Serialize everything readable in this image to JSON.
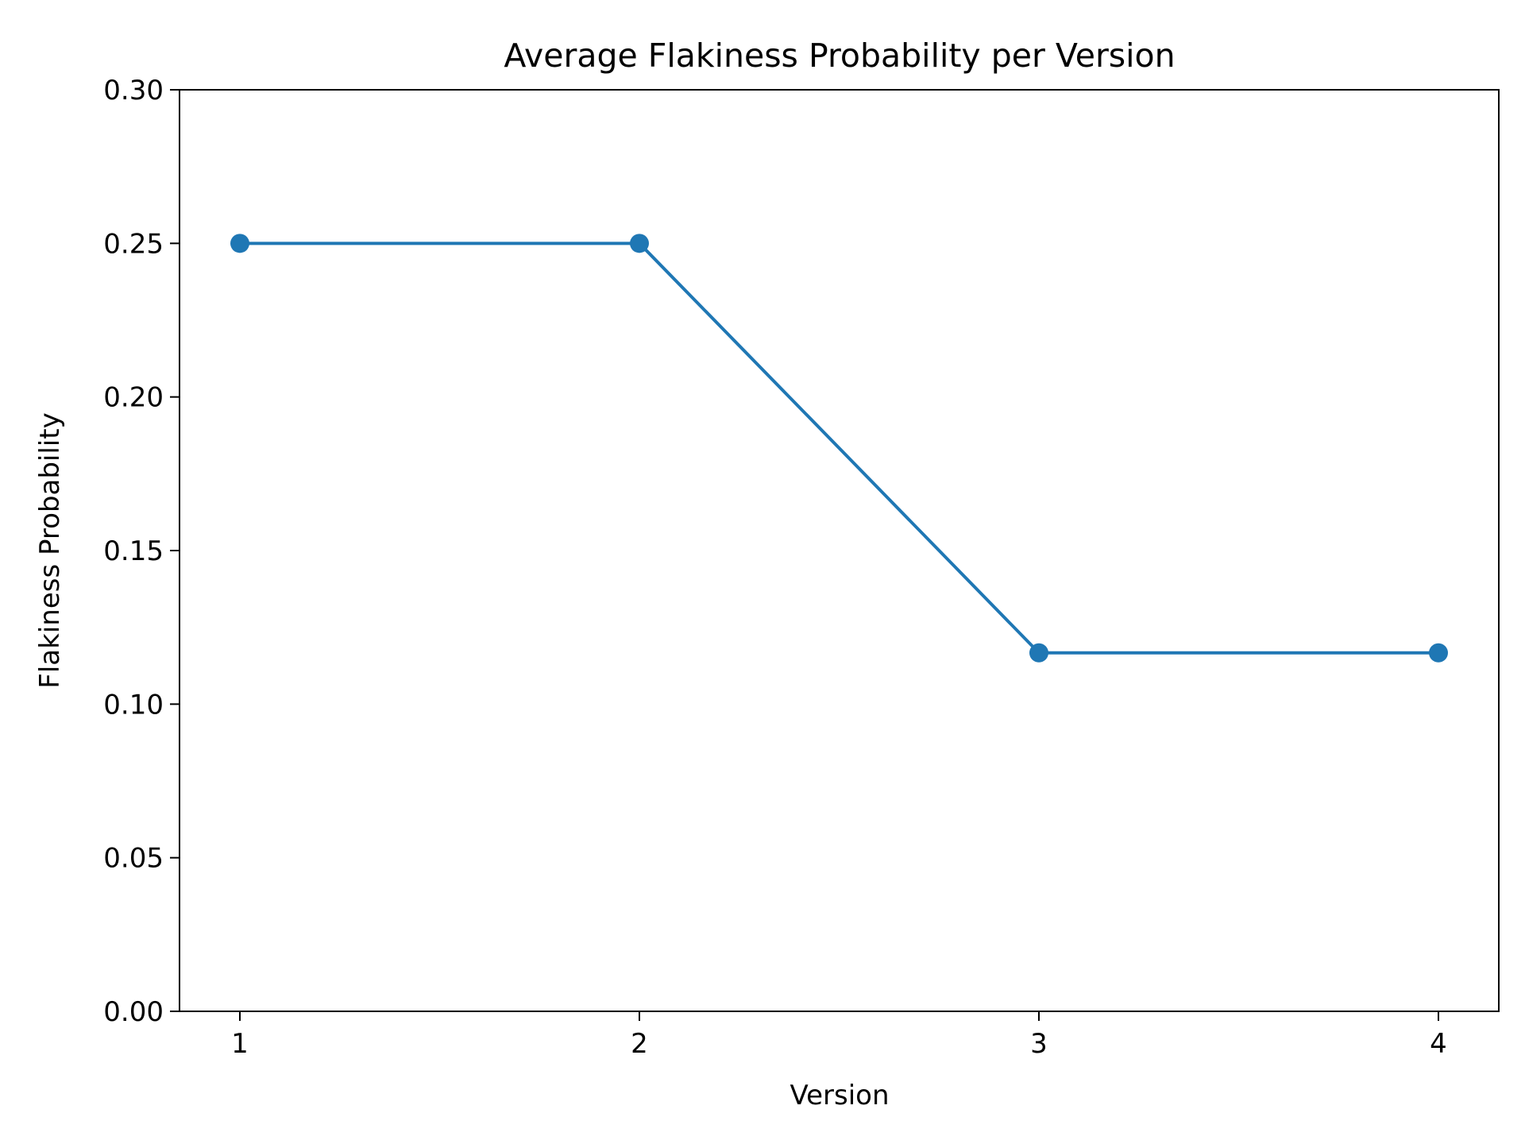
{
  "chart_data": {
    "type": "line",
    "title": "Average Flakiness Probability per Version",
    "xlabel": "Version",
    "ylabel": "Flakiness Probability",
    "x": [
      1,
      2,
      3,
      4
    ],
    "x_ticks": [
      "1",
      "2",
      "3",
      "4"
    ],
    "series": [
      {
        "values": [
          0.25,
          0.25,
          0.1167,
          0.1167
        ],
        "color": "#1f77b4",
        "marker": "circle"
      }
    ],
    "ylim": [
      0,
      0.3
    ],
    "y_ticks": [
      "0.00",
      "0.05",
      "0.10",
      "0.15",
      "0.20",
      "0.25",
      "0.30"
    ],
    "grid": false,
    "legend": false
  }
}
